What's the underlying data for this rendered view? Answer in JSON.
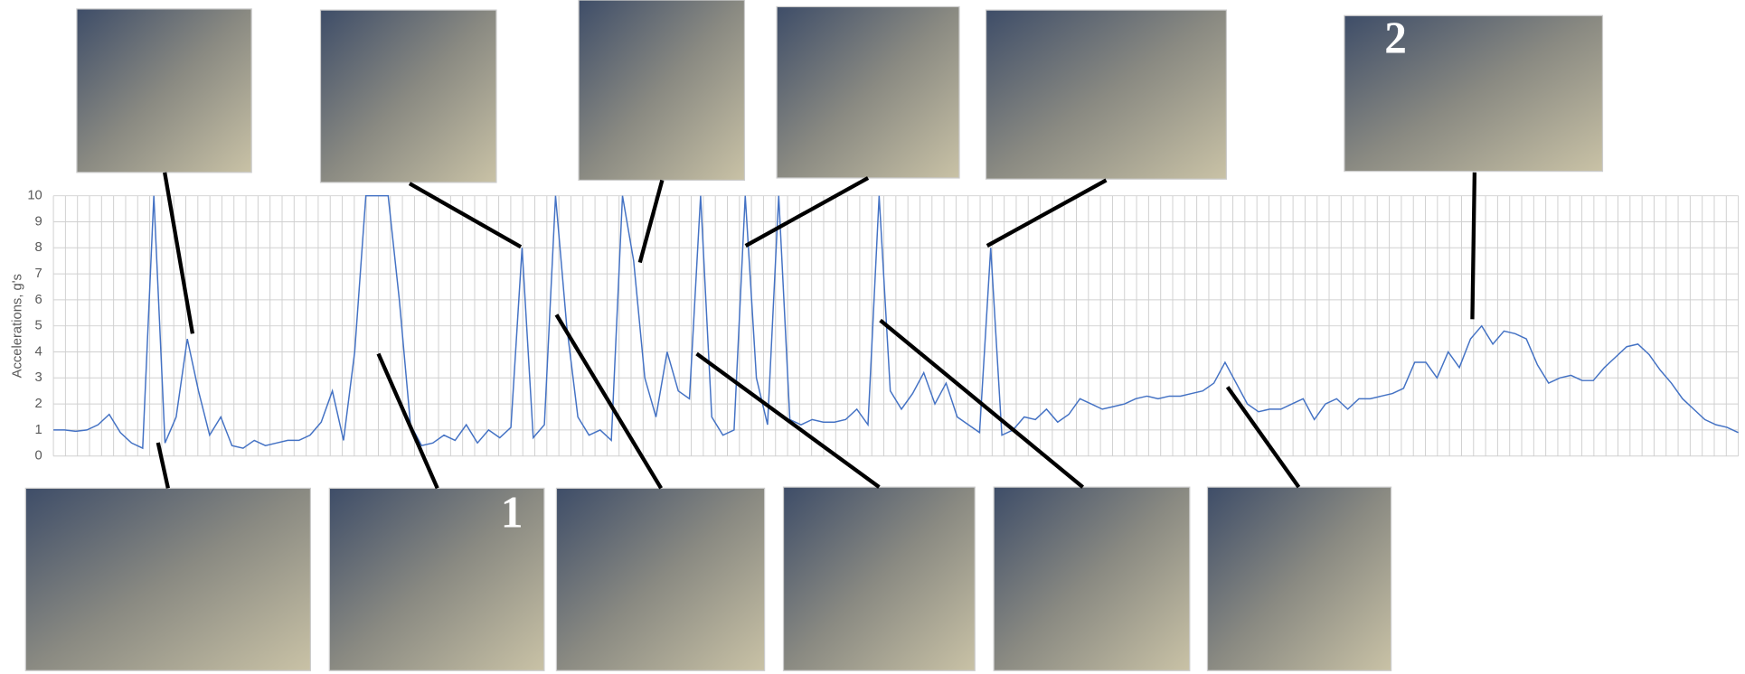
{
  "chart_data": {
    "type": "line",
    "y_label": "Accelerations, g's",
    "annotations": [
      "1",
      "2"
    ],
    "color": "#4472c4",
    "grid": true,
    "ylim": [
      0,
      10
    ],
    "yticks": [
      0,
      1,
      2,
      3,
      4,
      5,
      6,
      7,
      8,
      9,
      10
    ],
    "values": [
      1.0,
      1.0,
      0.95,
      1.0,
      1.2,
      1.6,
      0.9,
      0.5,
      0.3,
      10,
      0.5,
      1.5,
      4.5,
      2.5,
      0.8,
      1.5,
      0.4,
      0.3,
      0.6,
      0.4,
      0.5,
      0.6,
      0.6,
      0.8,
      1.3,
      2.5,
      0.6,
      4,
      10,
      10,
      10,
      6,
      1.2,
      0.4,
      0.5,
      0.8,
      0.6,
      1.2,
      0.5,
      1.0,
      0.7,
      1.1,
      8,
      0.7,
      1.2,
      10,
      5,
      1.5,
      0.8,
      1.0,
      0.6,
      10,
      7.5,
      3,
      1.5,
      4,
      2.5,
      2.2,
      10,
      1.5,
      0.8,
      1.0,
      10,
      3,
      1.2,
      10,
      1.4,
      1.2,
      1.4,
      1.3,
      1.3,
      1.4,
      1.8,
      1.2,
      10,
      2.5,
      1.8,
      2.4,
      3.2,
      2.0,
      2.8,
      1.5,
      1.2,
      0.9,
      8,
      0.8,
      1.0,
      1.5,
      1.4,
      1.8,
      1.3,
      1.6,
      2.2,
      2.0,
      1.8,
      1.9,
      2.0,
      2.2,
      2.3,
      2.2,
      2.3,
      2.3,
      2.4,
      2.5,
      2.8,
      3.6,
      2.8,
      2.0,
      1.7,
      1.8,
      1.8,
      2.0,
      2.2,
      1.4,
      2.0,
      2.2,
      1.8,
      2.2,
      2.2,
      2.3,
      2.4,
      2.6,
      3.6,
      3.6,
      3.0,
      4.0,
      3.4,
      4.5,
      5.0,
      4.3,
      4.8,
      4.7,
      4.5,
      3.5,
      2.8,
      3.0,
      3.1,
      2.9,
      2.9,
      3.4,
      3.8,
      4.2,
      4.3,
      3.9,
      3.3,
      2.8,
      2.2,
      1.8,
      1.4,
      1.2,
      1.1,
      0.9
    ]
  }
}
